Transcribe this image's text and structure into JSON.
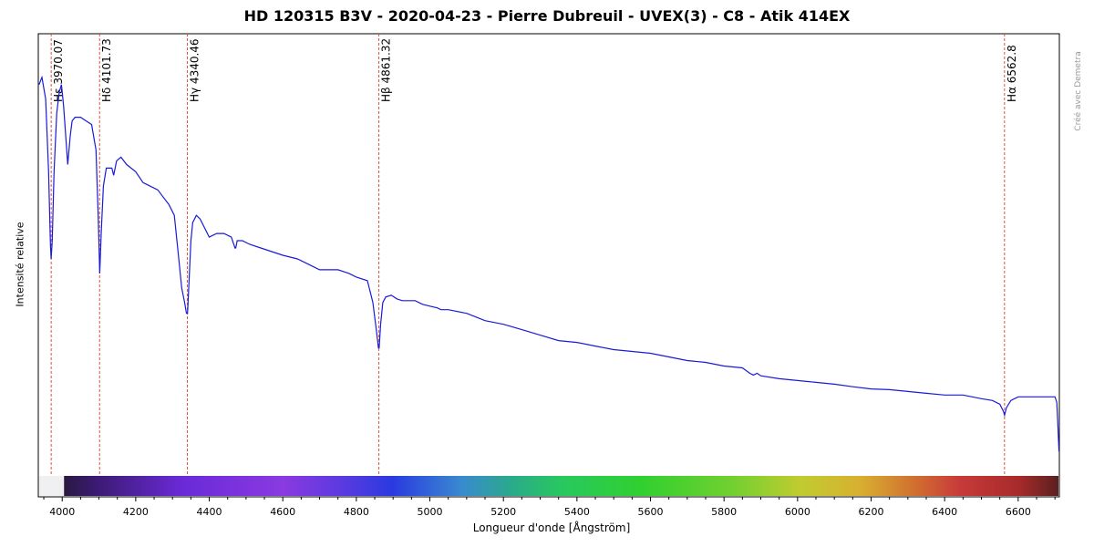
{
  "chart_data": {
    "type": "line",
    "title": "HD 120315  B3V - 2020-04-23 - Pierre Dubreuil - UVEX(3) - C8 - Atik 414EX",
    "xlabel": "Longueur d'onde [Ångström]",
    "ylabel": "Intensité relative",
    "xlim": [
      3935,
      6712
    ],
    "ylim": [
      0,
      1.2
    ],
    "grid": false,
    "x_ticks": [
      4000,
      4200,
      4400,
      4600,
      4800,
      5000,
      5200,
      5400,
      5600,
      5800,
      6000,
      6200,
      6400,
      6600
    ],
    "line_color": "#1a1ad8",
    "marker_color": "#e0503a",
    "spectral_lines": [
      {
        "label": "Hε  3970.07",
        "wavelength": 3970.07
      },
      {
        "label": "Hδ  4101.73",
        "wavelength": 4101.73
      },
      {
        "label": "Hγ  4340.46",
        "wavelength": 4340.46
      },
      {
        "label": "Hβ  4861.32",
        "wavelength": 4861.32
      },
      {
        "label": "Hα  6562.8",
        "wavelength": 6562.8
      }
    ],
    "series": [
      {
        "x": [
          3937,
          3945,
          3955,
          3963,
          3968,
          3970,
          3973,
          3978,
          3985,
          3992,
          3998,
          4004,
          4015,
          4022,
          4027,
          4035,
          4050,
          4065,
          4080,
          4092,
          4098,
          4102,
          4106,
          4112,
          4120,
          4135,
          4140,
          4148,
          4160,
          4175,
          4200,
          4220,
          4240,
          4260,
          4275,
          4290,
          4305,
          4315,
          4325,
          4333,
          4338,
          4341,
          4345,
          4350,
          4355,
          4365,
          4375,
          4385,
          4400,
          4420,
          4440,
          4460,
          4470,
          4472,
          4476,
          4490,
          4510,
          4540,
          4570,
          4600,
          4640,
          4680,
          4700,
          4720,
          4750,
          4780,
          4800,
          4830,
          4845,
          4855,
          4860,
          4862,
          4866,
          4872,
          4880,
          4895,
          4910,
          4925,
          4940,
          4960,
          4980,
          5000,
          5020,
          5030,
          5050,
          5100,
          5150,
          5200,
          5250,
          5300,
          5350,
          5400,
          5450,
          5500,
          5550,
          5600,
          5650,
          5700,
          5750,
          5800,
          5850,
          5870,
          5880,
          5890,
          5900,
          5950,
          6000,
          6050,
          6100,
          6150,
          6200,
          6250,
          6300,
          6350,
          6400,
          6450,
          6500,
          6530,
          6550,
          6560,
          6563,
          6568,
          6580,
          6600,
          6640,
          6680,
          6700,
          6705,
          6708,
          6711
        ],
        "y": [
          1.06,
          1.08,
          1.02,
          0.82,
          0.62,
          0.58,
          0.63,
          0.82,
          0.98,
          1.04,
          1.06,
          1.0,
          0.84,
          0.92,
          0.96,
          0.97,
          0.97,
          0.96,
          0.95,
          0.88,
          0.7,
          0.54,
          0.65,
          0.78,
          0.83,
          0.83,
          0.81,
          0.85,
          0.86,
          0.84,
          0.82,
          0.79,
          0.78,
          0.77,
          0.75,
          0.73,
          0.7,
          0.6,
          0.5,
          0.46,
          0.43,
          0.43,
          0.52,
          0.63,
          0.68,
          0.7,
          0.69,
          0.67,
          0.64,
          0.65,
          0.65,
          0.64,
          0.61,
          0.61,
          0.63,
          0.63,
          0.62,
          0.61,
          0.6,
          0.59,
          0.58,
          0.56,
          0.55,
          0.55,
          0.55,
          0.54,
          0.53,
          0.52,
          0.46,
          0.38,
          0.335,
          0.335,
          0.4,
          0.46,
          0.475,
          0.48,
          0.47,
          0.465,
          0.465,
          0.465,
          0.455,
          0.45,
          0.445,
          0.44,
          0.44,
          0.43,
          0.41,
          0.4,
          0.385,
          0.37,
          0.355,
          0.35,
          0.34,
          0.33,
          0.325,
          0.32,
          0.31,
          0.3,
          0.295,
          0.285,
          0.28,
          0.265,
          0.26,
          0.265,
          0.258,
          0.25,
          0.245,
          0.24,
          0.235,
          0.228,
          0.222,
          0.22,
          0.215,
          0.21,
          0.205,
          0.205,
          0.195,
          0.19,
          0.18,
          0.16,
          0.15,
          0.17,
          0.19,
          0.2,
          0.2,
          0.2,
          0.2,
          0.185,
          0.12,
          0.05
        ]
      }
    ]
  },
  "watermark": "Créé avec Demetra",
  "colors": {
    "axis": "#000000",
    "marker": "#e0503a",
    "line": "#1a1ad8",
    "watermark": "#9a9a9a"
  }
}
